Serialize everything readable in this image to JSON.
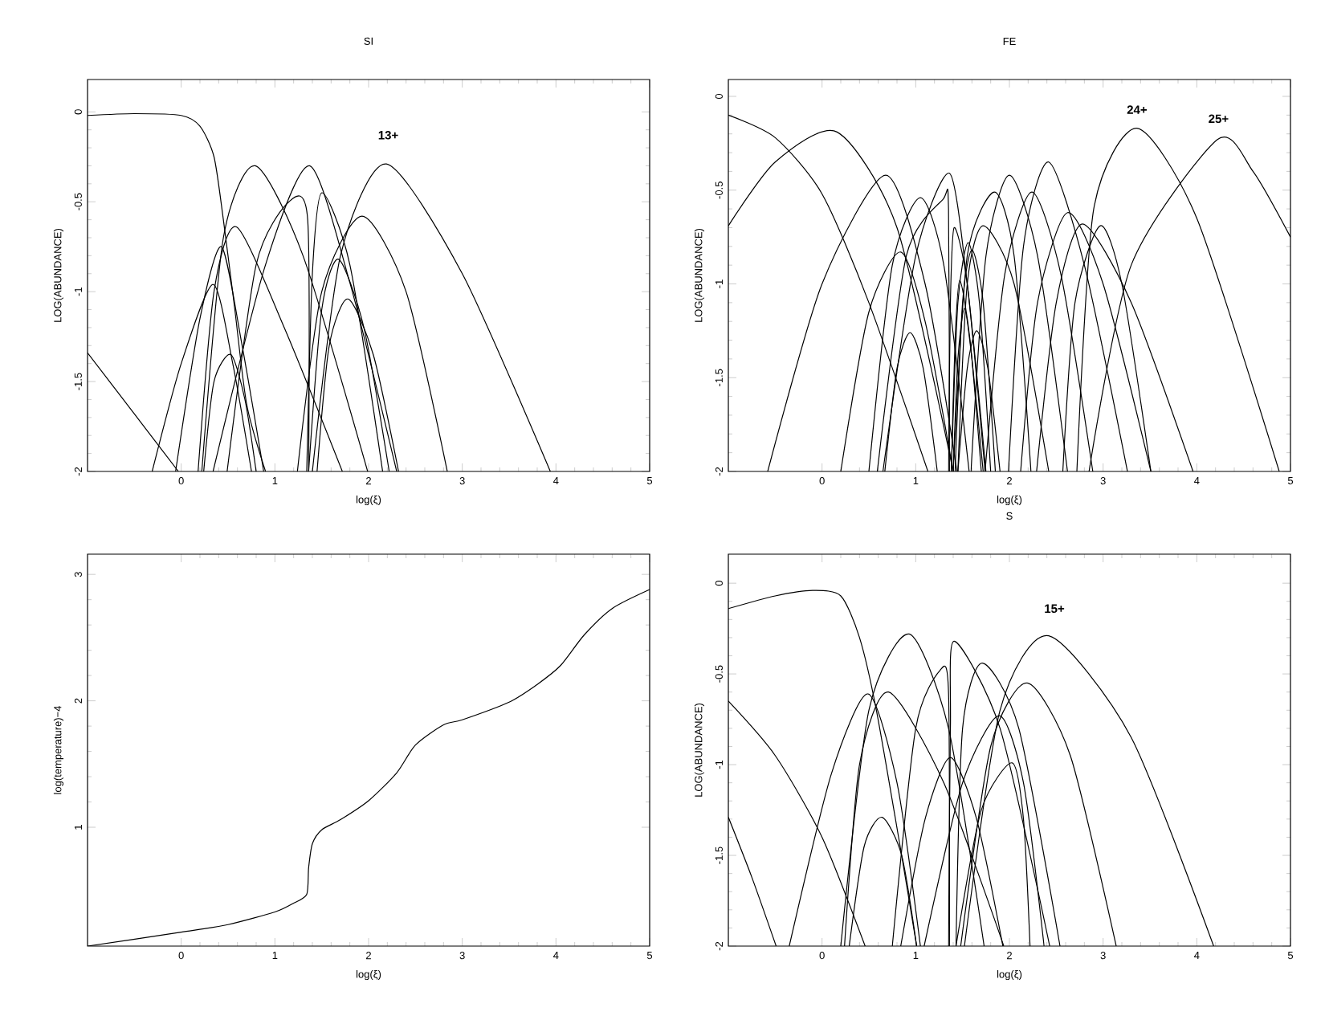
{
  "chart_data": [
    {
      "type": "line",
      "title": "SI",
      "xlabel": "log(ξ)",
      "ylabel": "LOG(ABUNDANCE)",
      "color": "#000000",
      "xlim": [
        -1,
        5
      ],
      "ylim": [
        -2,
        0.18
      ],
      "xticks": [
        0,
        1,
        2,
        3,
        4,
        5
      ],
      "yticks": [
        -2,
        -1.5,
        -1,
        -0.5,
        0
      ],
      "annotations": [
        "13+"
      ],
      "series": [
        {
          "x": [
            -1,
            -0.5,
            0,
            0.2,
            0.35,
            0.45,
            0.57,
            0.7,
            0.9
          ],
          "values": [
            -0.02,
            -0.01,
            -0.02,
            -0.08,
            -0.25,
            -0.6,
            -1.09,
            -1.63,
            -2
          ]
        },
        {
          "x": [
            -1,
            -0.5,
            -0.03
          ],
          "values": [
            -1.34,
            -1.68,
            -2
          ]
        },
        {
          "x": [
            -0.31,
            0,
            0.34,
            0.55,
            0.75
          ],
          "values": [
            -2,
            -1.4,
            -0.96,
            -1.4,
            -2
          ]
        },
        {
          "x": [
            -0.06,
            0.2,
            0.43,
            0.65,
            0.88
          ],
          "values": [
            -2,
            -1.15,
            -0.75,
            -1.3,
            -2
          ]
        },
        {
          "x": [
            0.24,
            0.35,
            0.53,
            0.68,
            0.8
          ],
          "values": [
            -2,
            -1.5,
            -1.35,
            -1.6,
            -2
          ]
        },
        {
          "x": [
            0.18,
            0.35,
            0.59,
            1.1,
            1.72
          ],
          "values": [
            -2,
            -1.0,
            -0.64,
            -1.2,
            -2
          ]
        },
        {
          "x": [
            0.22,
            0.45,
            0.79,
            1.3,
            1.99
          ],
          "values": [
            -2,
            -0.7,
            -0.3,
            -0.8,
            -2
          ]
        },
        {
          "x": [
            0.49,
            0.8,
            1.15,
            1.35,
            1.36
          ],
          "values": [
            -2,
            -0.85,
            -0.5,
            -0.6,
            -2
          ]
        },
        {
          "x": [
            0.34,
            0.9,
            1.37,
            1.8,
            2.3
          ],
          "values": [
            -2,
            -0.85,
            -0.3,
            -0.95,
            -2
          ]
        },
        {
          "x": [
            1.34,
            1.4,
            1.5,
            1.8,
            2.15
          ],
          "values": [
            -2,
            -0.9,
            -0.45,
            -0.85,
            -2
          ]
        },
        {
          "x": [
            1.36,
            1.5,
            1.68,
            1.95,
            2.22
          ],
          "values": [
            -2,
            -1.1,
            -0.82,
            -1.2,
            -2
          ]
        },
        {
          "x": [
            1.45,
            1.58,
            1.78,
            2.05,
            2.32
          ],
          "values": [
            -2,
            -1.3,
            -1.04,
            -1.35,
            -2
          ]
        },
        {
          "x": [
            1.24,
            1.5,
            1.93,
            2.4,
            2.84
          ],
          "values": [
            -2,
            -1.0,
            -0.58,
            -1.0,
            -2
          ]
        },
        {
          "x": [
            1.4,
            1.7,
            2.19,
            3.0,
            3.94
          ],
          "values": [
            -2,
            -0.8,
            -0.29,
            -0.9,
            -2
          ]
        }
      ]
    },
    {
      "type": "line",
      "title": "FE",
      "xlabel": "log(ξ)",
      "ylabel": "LOG(ABUNDANCE)",
      "color": "#000000",
      "xlim": [
        -1,
        5
      ],
      "ylim": [
        -2,
        0.09
      ],
      "xticks": [
        0,
        1,
        2,
        3,
        4,
        5
      ],
      "yticks": [
        -2,
        -1.5,
        -1,
        -0.5,
        0
      ],
      "annotations": [
        "24+",
        "25+"
      ],
      "series": [
        {
          "x": [
            -1,
            -0.5,
            0,
            0.5,
            1.13
          ],
          "values": [
            -0.1,
            -0.22,
            -0.52,
            -1.1,
            -2
          ]
        },
        {
          "x": [
            -1,
            -0.5,
            0.16,
            0.8,
            1.4
          ],
          "values": [
            -0.69,
            -0.35,
            -0.19,
            -0.7,
            -2
          ]
        },
        {
          "x": [
            -0.58,
            0,
            0.68,
            1.1,
            1.44
          ],
          "values": [
            -2,
            -1.0,
            -0.42,
            -1.0,
            -2
          ]
        },
        {
          "x": [
            0.2,
            0.5,
            0.84,
            1.1,
            1.4
          ],
          "values": [
            -2,
            -1.15,
            -0.83,
            -1.2,
            -2
          ]
        },
        {
          "x": [
            0.67,
            0.8,
            0.94,
            1.08,
            1.23
          ],
          "values": [
            -2,
            -1.45,
            -1.26,
            -1.45,
            -2
          ]
        },
        {
          "x": [
            0.5,
            0.75,
            1.05,
            1.3,
            1.57
          ],
          "values": [
            -2,
            -0.9,
            -0.54,
            -0.9,
            -2
          ]
        },
        {
          "x": [
            0.59,
            0.9,
            1.29,
            1.35,
            1.36
          ],
          "values": [
            -2,
            -0.85,
            -0.55,
            -0.6,
            -2
          ]
        },
        {
          "x": [
            0.65,
            1.0,
            1.36,
            1.55,
            1.74
          ],
          "values": [
            -2,
            -0.85,
            -0.41,
            -1.0,
            -2
          ]
        },
        {
          "x": [
            1.35,
            1.37,
            1.41,
            1.55,
            1.75
          ],
          "values": [
            -2,
            -1.1,
            -0.7,
            -1.0,
            -2
          ]
        },
        {
          "x": [
            1.38,
            1.42,
            1.47,
            1.58,
            1.7
          ],
          "values": [
            -2,
            -1.3,
            -0.98,
            -1.3,
            -2
          ]
        },
        {
          "x": [
            1.4,
            1.45,
            1.52,
            1.6,
            1.72
          ],
          "values": [
            -2,
            -1.4,
            -1.13,
            -1.4,
            -2
          ]
        },
        {
          "x": [
            1.38,
            1.45,
            1.56,
            1.68,
            1.8
          ],
          "values": [
            -2,
            -1.1,
            -0.78,
            -1.1,
            -2
          ]
        },
        {
          "x": [
            1.42,
            1.5,
            1.6,
            1.72,
            1.85
          ],
          "values": [
            -2,
            -1.1,
            -0.82,
            -1.1,
            -2
          ]
        },
        {
          "x": [
            1.45,
            1.55,
            1.65,
            1.77,
            1.9
          ],
          "values": [
            -2,
            -1.45,
            -1.25,
            -1.45,
            -2
          ]
        },
        {
          "x": [
            1.45,
            1.55,
            1.72,
            2.05,
            2.42
          ],
          "values": [
            -2,
            -1.0,
            -0.69,
            -1.0,
            -2
          ]
        },
        {
          "x": [
            1.4,
            1.55,
            1.84,
            2.05,
            2.23
          ],
          "values": [
            -2,
            -0.85,
            -0.51,
            -0.85,
            -2
          ]
        },
        {
          "x": [
            1.59,
            1.75,
            2.0,
            2.3,
            2.62
          ],
          "values": [
            -2,
            -0.85,
            -0.42,
            -0.85,
            -2
          ]
        },
        {
          "x": [
            1.74,
            1.95,
            2.24,
            2.55,
            2.89
          ],
          "values": [
            -2,
            -0.95,
            -0.51,
            -0.95,
            -2
          ]
        },
        {
          "x": [
            1.99,
            2.15,
            2.42,
            2.8,
            3.26
          ],
          "values": [
            -2,
            -0.8,
            -0.35,
            -0.9,
            -2
          ]
        },
        {
          "x": [
            2.12,
            2.3,
            2.62,
            3.0,
            3.51
          ],
          "values": [
            -2,
            -1.1,
            -0.62,
            -1.0,
            -2
          ]
        },
        {
          "x": [
            2.29,
            2.5,
            2.78,
            3.3,
            3.96
          ],
          "values": [
            -2,
            -1.1,
            -0.68,
            -1.1,
            -2
          ]
        },
        {
          "x": [
            2.57,
            2.7,
            2.97,
            3.2,
            3.51
          ],
          "values": [
            -2,
            -1.1,
            -0.69,
            -1.0,
            -2
          ]
        },
        {
          "x": [
            2.72,
            2.9,
            3.36,
            4.0,
            4.88
          ],
          "values": [
            -2,
            -0.6,
            -0.17,
            -0.65,
            -2
          ]
        },
        {
          "x": [
            2.85,
            3.3,
            4.22,
            4.6,
            5
          ],
          "values": [
            -2,
            -0.9,
            -0.23,
            -0.4,
            -0.75
          ]
        }
      ]
    },
    {
      "type": "line",
      "xlabel": "log(ξ)",
      "ylabel": "log(temperature)−4",
      "color": "#000000",
      "xlim": [
        -1,
        5
      ],
      "ylim": [
        0.06,
        3.16
      ],
      "xticks": [
        0,
        1,
        2,
        3,
        4,
        5
      ],
      "yticks": [
        1,
        2,
        3
      ],
      "series": [
        {
          "x": [
            -1,
            0,
            0.5,
            1,
            1.2,
            1.34,
            1.36,
            1.4,
            1.5,
            1.7,
            2,
            2.3,
            2.5,
            2.8,
            3,
            3.5,
            3.8,
            4.05,
            4.3,
            4.6,
            5
          ],
          "values": [
            0.06,
            0.17,
            0.23,
            0.33,
            0.4,
            0.47,
            0.68,
            0.87,
            0.98,
            1.06,
            1.21,
            1.43,
            1.65,
            1.81,
            1.85,
            1.99,
            2.13,
            2.28,
            2.52,
            2.73,
            2.88
          ]
        }
      ]
    },
    {
      "type": "line",
      "title": "S",
      "xlabel": "log(ξ)",
      "ylabel": "LOG(ABUNDANCE)",
      "color": "#000000",
      "xlim": [
        -1,
        5
      ],
      "ylim": [
        -2,
        0.16
      ],
      "xticks": [
        0,
        1,
        2,
        3,
        4,
        5
      ],
      "yticks": [
        -2,
        -1.5,
        -1,
        -0.5,
        0
      ],
      "annotations": [
        "15+"
      ],
      "series": [
        {
          "x": [
            -1,
            -0.5,
            -0.1,
            0.2,
            0.4,
            0.58,
            0.84,
            1.01
          ],
          "values": [
            -0.14,
            -0.07,
            -0.04,
            -0.07,
            -0.3,
            -0.7,
            -1.47,
            -2
          ]
        },
        {
          "x": [
            -1,
            -0.5,
            0,
            0.46
          ],
          "values": [
            -0.65,
            -0.95,
            -1.4,
            -2
          ]
        },
        {
          "x": [
            -1,
            -0.75,
            -0.49
          ],
          "values": [
            -1.29,
            -1.62,
            -2
          ]
        },
        {
          "x": [
            -0.35,
            0.1,
            0.49,
            0.8,
            1.05
          ],
          "values": [
            -2,
            -1.05,
            -0.61,
            -1.1,
            -2
          ]
        },
        {
          "x": [
            0.24,
            0.4,
            0.71,
            1.3,
            1.94
          ],
          "values": [
            -2,
            -1.0,
            -0.6,
            -1.1,
            -2
          ]
        },
        {
          "x": [
            0.29,
            0.45,
            0.64,
            0.85,
            1.01
          ],
          "values": [
            -2,
            -1.45,
            -1.29,
            -1.5,
            -2
          ]
        },
        {
          "x": [
            0.2,
            0.5,
            0.93,
            1.35,
            1.73
          ],
          "values": [
            -2,
            -0.7,
            -0.28,
            -0.8,
            -2
          ]
        },
        {
          "x": [
            0.75,
            1.0,
            1.26,
            1.35,
            1.36
          ],
          "values": [
            -2,
            -0.8,
            -0.48,
            -0.6,
            -2
          ]
        },
        {
          "x": [
            1.35,
            1.37,
            1.41,
            1.9,
            2.43
          ],
          "values": [
            -2,
            -0.8,
            -0.32,
            -0.8,
            -2
          ]
        },
        {
          "x": [
            0.84,
            1.1,
            1.37,
            1.65,
            1.93
          ],
          "values": [
            -2,
            -1.3,
            -0.96,
            -1.3,
            -2
          ]
        },
        {
          "x": [
            1.43,
            1.5,
            1.71,
            2.1,
            2.54
          ],
          "values": [
            -2,
            -0.8,
            -0.44,
            -0.8,
            -2
          ]
        },
        {
          "x": [
            1.09,
            1.5,
            1.89,
            2.15,
            2.37
          ],
          "values": [
            -2,
            -1.1,
            -0.73,
            -1.1,
            -2
          ]
        },
        {
          "x": [
            1.43,
            1.7,
            2.03,
            2.15,
            2.22
          ],
          "values": [
            -2,
            -1.25,
            -0.99,
            -1.3,
            -2
          ]
        },
        {
          "x": [
            1.48,
            1.8,
            2.19,
            2.65,
            3.14
          ],
          "values": [
            -2,
            -0.9,
            -0.55,
            -0.95,
            -2
          ]
        },
        {
          "x": [
            1.52,
            1.9,
            2.42,
            3.3,
            4.18
          ],
          "values": [
            -2,
            -0.7,
            -0.29,
            -0.85,
            -2
          ]
        }
      ]
    }
  ]
}
